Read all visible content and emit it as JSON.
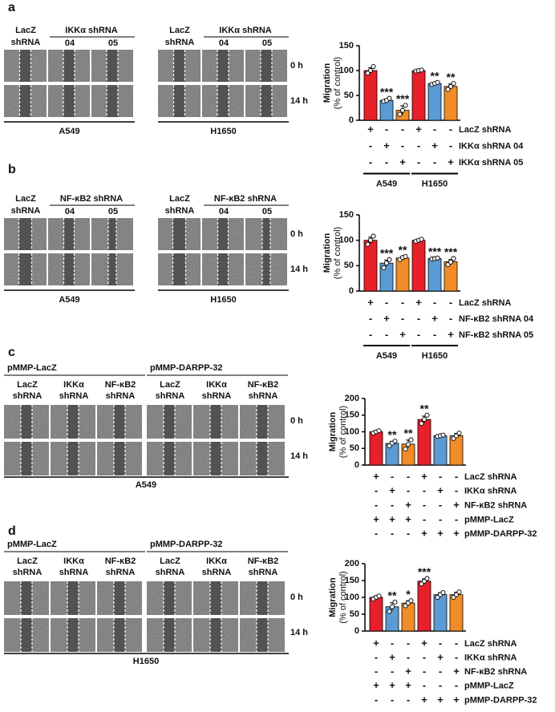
{
  "panels": [
    {
      "label": "a",
      "times": [
        "0 h",
        "14 h"
      ],
      "sets": [
        {
          "first": [
            "LacZ",
            "shRNA"
          ],
          "span": "IKKα shRNA",
          "subs": [
            "04",
            "05"
          ],
          "cell_line": "A549"
        },
        {
          "first": [
            "LacZ",
            "shRNA"
          ],
          "span": "IKKα shRNA",
          "subs": [
            "04",
            "05"
          ],
          "cell_line": "H1650"
        }
      ]
    },
    {
      "label": "b",
      "times": [
        "0 h",
        "14 h"
      ],
      "sets": [
        {
          "first": [
            "LacZ",
            "shRNA"
          ],
          "span": "NF-κB2 shRNA",
          "subs": [
            "04",
            "05"
          ],
          "cell_line": "A549"
        },
        {
          "first": [
            "LacZ",
            "shRNA"
          ],
          "span": "NF-κB2 shRNA",
          "subs": [
            "04",
            "05"
          ],
          "cell_line": "H1650"
        }
      ]
    },
    {
      "label": "c",
      "times": [
        "0 h",
        "14 h"
      ],
      "cell_line": "A549",
      "sets": [
        {
          "title": "pMMP-LacZ",
          "columns": [
            [
              "LacZ",
              "shRNA"
            ],
            [
              "IKKα",
              "shRNA"
            ],
            [
              "NF-κB2",
              "shRNA"
            ]
          ]
        },
        {
          "title": "pMMP-DARPP-32",
          "columns": [
            [
              "LacZ",
              "shRNA"
            ],
            [
              "IKKα",
              "shRNA"
            ],
            [
              "NF-κB2",
              "shRNA"
            ]
          ]
        }
      ]
    },
    {
      "label": "d",
      "times": [
        "0 h",
        "14 h"
      ],
      "cell_line": "H1650",
      "sets": [
        {
          "title": "pMMP-LacZ",
          "columns": [
            [
              "LacZ",
              "shRNA"
            ],
            [
              "IKKα",
              "shRNA"
            ],
            [
              "NF-κB2",
              "shRNA"
            ]
          ]
        },
        {
          "title": "pMMP-DARPP-32",
          "columns": [
            [
              "LacZ",
              "shRNA"
            ],
            [
              "IKKα",
              "shRNA"
            ],
            [
              "NF-κB2",
              "shRNA"
            ]
          ]
        }
      ]
    }
  ],
  "chart_data": [
    {
      "type": "bar",
      "ylabel": [
        "Migration",
        "(% of control)"
      ],
      "ylim": [
        0,
        150
      ],
      "yticks": [
        0,
        50,
        100,
        150
      ],
      "values": [
        100,
        40,
        20,
        100,
        74,
        68
      ],
      "errors": [
        6,
        3,
        9,
        1,
        1,
        5
      ],
      "colors": [
        "#e8202a",
        "#5b9bd5",
        "#f28c28",
        "#e8202a",
        "#5b9bd5",
        "#f28c28"
      ],
      "points": [
        [
          95,
          100,
          108
        ],
        [
          38,
          40,
          44
        ],
        [
          12,
          20,
          30
        ],
        [
          99,
          100,
          101
        ],
        [
          72,
          74,
          76
        ],
        [
          62,
          68,
          74
        ]
      ],
      "significance": [
        null,
        "***",
        "***",
        null,
        "**",
        "**"
      ],
      "conditions": [
        {
          "name": "LacZ shRNA",
          "signs": [
            "+",
            "-",
            "-",
            "+",
            "-",
            "-"
          ]
        },
        {
          "name": "IKKα shRNA 04",
          "signs": [
            "-",
            "+",
            "-",
            "-",
            "+",
            "-"
          ]
        },
        {
          "name": "IKKα shRNA 05",
          "signs": [
            "-",
            "-",
            "+",
            "-",
            "-",
            "+"
          ]
        }
      ],
      "groups": [
        "A549",
        "H1650"
      ]
    },
    {
      "type": "bar",
      "ylabel": [
        "Migration",
        "(% of control)"
      ],
      "ylim": [
        0,
        150
      ],
      "yticks": [
        0,
        50,
        100,
        150
      ],
      "values": [
        100,
        55,
        65,
        100,
        64,
        58
      ],
      "errors": [
        6,
        6,
        3,
        1,
        1,
        4
      ],
      "colors": [
        "#e8202a",
        "#5b9bd5",
        "#f28c28",
        "#e8202a",
        "#5b9bd5",
        "#f28c28"
      ],
      "points": [
        [
          92,
          100,
          108
        ],
        [
          46,
          55,
          62
        ],
        [
          62,
          66,
          68
        ],
        [
          98,
          100,
          102
        ],
        [
          63,
          64,
          65
        ],
        [
          52,
          57,
          64
        ]
      ],
      "significance": [
        null,
        "***",
        "**",
        null,
        "***",
        "***"
      ],
      "conditions": [
        {
          "name": "LacZ shRNA",
          "signs": [
            "+",
            "-",
            "-",
            "+",
            "-",
            "-"
          ]
        },
        {
          "name": "NF-κB2 shRNA 04",
          "signs": [
            "-",
            "+",
            "-",
            "-",
            "+",
            "-"
          ]
        },
        {
          "name": "NF-κB2 shRNA 05",
          "signs": [
            "-",
            "-",
            "+",
            "-",
            "-",
            "+"
          ]
        }
      ],
      "groups": [
        "A549",
        "H1650"
      ]
    },
    {
      "type": "bar",
      "ylabel": [
        "Migration",
        "(% of control)"
      ],
      "ylim": [
        0,
        200
      ],
      "yticks": [
        0,
        50,
        100,
        150,
        200
      ],
      "values": [
        100,
        65,
        63,
        137,
        88,
        88
      ],
      "errors": [
        3,
        6,
        12,
        10,
        2,
        7
      ],
      "colors": [
        "#e8202a",
        "#5b9bd5",
        "#f28c28",
        "#e8202a",
        "#5b9bd5",
        "#f28c28"
      ],
      "points": [
        [
          96,
          100,
          103
        ],
        [
          58,
          66,
          72
        ],
        [
          48,
          62,
          76
        ],
        [
          125,
          137,
          150
        ],
        [
          86,
          88,
          90
        ],
        [
          80,
          88,
          96
        ]
      ],
      "significance": [
        null,
        "**",
        "**",
        "**",
        null,
        null
      ],
      "conditions": [
        {
          "name": "LacZ shRNA",
          "signs": [
            "+",
            "-",
            "-",
            "+",
            "-",
            "-"
          ]
        },
        {
          "name": "IKKα shRNA",
          "signs": [
            "-",
            "+",
            "-",
            "-",
            "+",
            "-"
          ]
        },
        {
          "name": "NF-κB2 shRNA",
          "signs": [
            "-",
            "-",
            "+",
            "-",
            "-",
            "+"
          ]
        },
        {
          "name": "pMMP-LacZ",
          "signs": [
            "+",
            "+",
            "+",
            "-",
            "-",
            "-"
          ]
        },
        {
          "name": "pMMP-DARPP-32",
          "signs": [
            "-",
            "-",
            "-",
            "+",
            "+",
            "+"
          ]
        }
      ]
    },
    {
      "type": "bar",
      "ylabel": [
        "Migration",
        "(% of control)"
      ],
      "ylim": [
        0,
        200
      ],
      "yticks": [
        0,
        50,
        100,
        150,
        200
      ],
      "values": [
        100,
        72,
        83,
        148,
        108,
        108
      ],
      "errors": [
        4,
        12,
        7,
        7,
        6,
        7
      ],
      "colors": [
        "#e8202a",
        "#5b9bd5",
        "#f28c28",
        "#e8202a",
        "#5b9bd5",
        "#f28c28"
      ],
      "points": [
        [
          95,
          100,
          104
        ],
        [
          58,
          72,
          86
        ],
        [
          75,
          83,
          90
        ],
        [
          140,
          148,
          156
        ],
        [
          100,
          108,
          114
        ],
        [
          100,
          108,
          116
        ]
      ],
      "significance": [
        null,
        "**",
        "*",
        "***",
        null,
        null
      ],
      "conditions": [
        {
          "name": "LacZ shRNA",
          "signs": [
            "+",
            "-",
            "-",
            "+",
            "-",
            "-"
          ]
        },
        {
          "name": "IKKα shRNA",
          "signs": [
            "-",
            "+",
            "-",
            "-",
            "+",
            "-"
          ]
        },
        {
          "name": "NF-κB2 shRNA",
          "signs": [
            "-",
            "-",
            "+",
            "-",
            "-",
            "+"
          ]
        },
        {
          "name": "pMMP-LacZ",
          "signs": [
            "+",
            "+",
            "+",
            "-",
            "-",
            "-"
          ]
        },
        {
          "name": "pMMP-DARPP-32",
          "signs": [
            "-",
            "-",
            "-",
            "+",
            "+",
            "+"
          ]
        }
      ]
    }
  ]
}
